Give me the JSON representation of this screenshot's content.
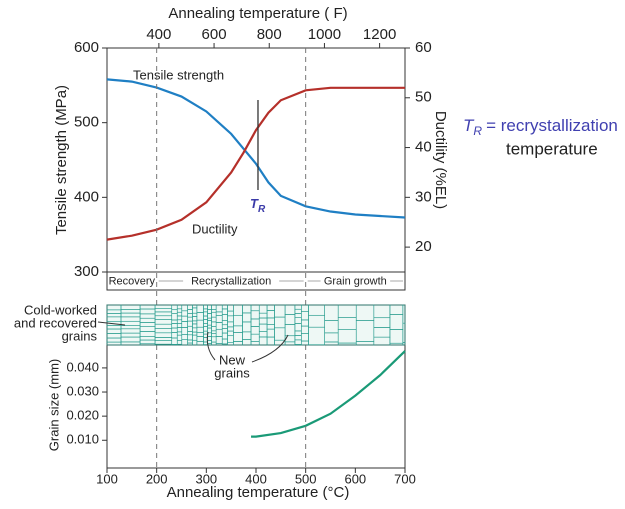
{
  "chart_data": [
    {
      "type": "line",
      "x2label": "Annealing temperature ( F)",
      "ylabel": "Tensile strength (MPa)",
      "y2label": "Ductility (%EL)",
      "x": [
        100,
        150,
        200,
        250,
        300,
        350,
        375,
        400,
        425,
        450,
        500,
        550,
        600,
        650,
        700
      ],
      "xlim": [
        100,
        700
      ],
      "x2lim": [
        212,
        1292
      ],
      "x2ticks": [
        400,
        600,
        800,
        1000,
        1200
      ],
      "ylim": [
        300,
        600
      ],
      "yticks": [
        300,
        400,
        500,
        600
      ],
      "y2lim": [
        15,
        60
      ],
      "y2ticks": [
        20,
        30,
        40,
        50,
        60
      ],
      "series": [
        {
          "name": "Tensile strength",
          "color": "#1f7fc4",
          "values": [
            558,
            555,
            547,
            535,
            515,
            485,
            465,
            445,
            420,
            402,
            388,
            381,
            377,
            375,
            373
          ]
        },
        {
          "name": "Ductility",
          "color": "#b5302a",
          "axis": "y2",
          "values": [
            21.5,
            22.3,
            23.5,
            25.5,
            29,
            35,
            39,
            43.5,
            47,
            49.5,
            51.5,
            52,
            52,
            52,
            52
          ]
        }
      ],
      "boundaries": [
        200,
        500
      ],
      "tr_temperature": 404,
      "tr_symbol": "T",
      "tr_subscript": "R",
      "regions": [
        {
          "label": "Recovery",
          "from": 100,
          "to": 200
        },
        {
          "label": "Recrystallization",
          "from": 200,
          "to": 500
        },
        {
          "label": "Grain growth",
          "from": 500,
          "to": 700
        }
      ],
      "definition": [
        "= recrystallization",
        "temperature"
      ],
      "cold_worked_label": [
        "Cold-worked",
        "and recovered",
        "grains"
      ],
      "new_grains_label": [
        "New",
        "grains"
      ]
    },
    {
      "type": "line",
      "xlabel": "Annealing temperature (°C)",
      "ylabel": "Grain size (mm)",
      "x": [
        390,
        400,
        450,
        500,
        550,
        600,
        650,
        700
      ],
      "xlim": [
        100,
        700
      ],
      "xticks": [
        100,
        200,
        300,
        400,
        500,
        600,
        700
      ],
      "ylim": [
        -0.0015,
        0.0495
      ],
      "yticks": [
        {
          "value": 0.01,
          "label": "0.010"
        },
        {
          "value": 0.02,
          "label": "0.020"
        },
        {
          "value": 0.03,
          "label": "0.030"
        },
        {
          "value": 0.04,
          "label": "0.040"
        }
      ],
      "series": [
        {
          "name": "Grain size",
          "color": "#1a9a77",
          "values": [
            0.0115,
            0.0115,
            0.013,
            0.016,
            0.021,
            0.0285,
            0.037,
            0.047
          ]
        }
      ]
    }
  ]
}
